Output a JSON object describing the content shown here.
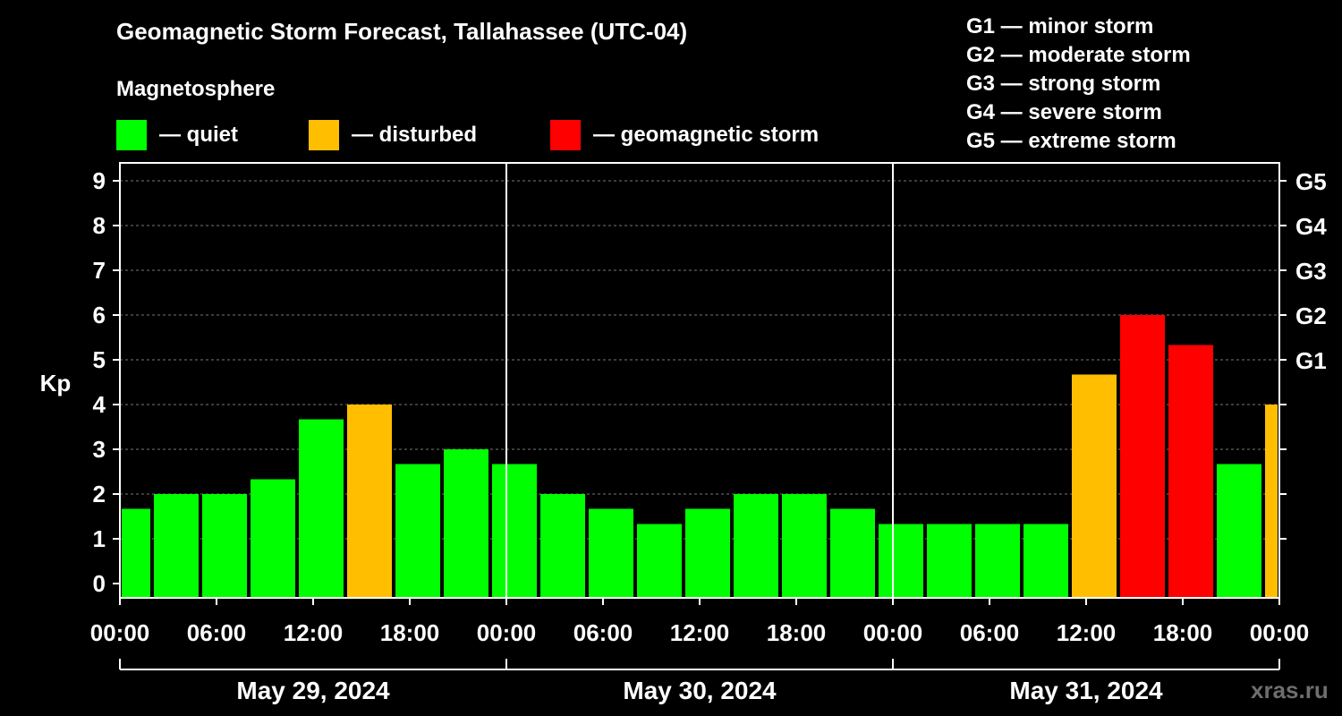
{
  "chart_data": {
    "type": "bar",
    "title": "Geomagnetic Storm Forecast, Tallahassee (UTC-04)",
    "subtitle": "Magnetosphere",
    "ylabel": "Kp",
    "ylim": [
      0,
      9
    ],
    "yticks": [
      "0",
      "1",
      "2",
      "3",
      "4",
      "5",
      "6",
      "7",
      "8",
      "9"
    ],
    "gscale_ticks": [
      {
        "kp": 5,
        "label": "G1"
      },
      {
        "kp": 6,
        "label": "G2"
      },
      {
        "kp": 7,
        "label": "G3"
      },
      {
        "kp": 8,
        "label": "G4"
      },
      {
        "kp": 9,
        "label": "G5"
      }
    ],
    "xticks": [
      "00:00",
      "06:00",
      "12:00",
      "18:00",
      "00:00",
      "06:00",
      "12:00",
      "18:00",
      "00:00",
      "06:00",
      "12:00",
      "18:00",
      "00:00"
    ],
    "hours_total": 72,
    "dates": [
      "May 29, 2024",
      "May 30, 2024",
      "May 31, 2024"
    ],
    "legend": [
      {
        "label": "— quiet",
        "color": "#00ff00"
      },
      {
        "label": "— disturbed",
        "color": "#ffbf00"
      },
      {
        "label": "— geomagnetic storm",
        "color": "#ff0000"
      }
    ],
    "storm_levels": [
      "G1 — minor storm",
      "G2 — moderate storm",
      "G3 — strong storm",
      "G4 — severe storm",
      "G5 — extreme storm"
    ],
    "bars": [
      {
        "start": 0,
        "end": 2,
        "kp": 1.67,
        "level": "quiet"
      },
      {
        "start": 2,
        "end": 5,
        "kp": 2.0,
        "level": "quiet"
      },
      {
        "start": 5,
        "end": 8,
        "kp": 2.0,
        "level": "quiet"
      },
      {
        "start": 8,
        "end": 11,
        "kp": 2.33,
        "level": "quiet"
      },
      {
        "start": 11,
        "end": 14,
        "kp": 3.67,
        "level": "quiet"
      },
      {
        "start": 14,
        "end": 17,
        "kp": 4.0,
        "level": "disturbed"
      },
      {
        "start": 17,
        "end": 20,
        "kp": 2.67,
        "level": "quiet"
      },
      {
        "start": 20,
        "end": 23,
        "kp": 3.0,
        "level": "quiet"
      },
      {
        "start": 23,
        "end": 26,
        "kp": 2.67,
        "level": "quiet"
      },
      {
        "start": 26,
        "end": 29,
        "kp": 2.0,
        "level": "quiet"
      },
      {
        "start": 29,
        "end": 32,
        "kp": 1.67,
        "level": "quiet"
      },
      {
        "start": 32,
        "end": 35,
        "kp": 1.33,
        "level": "quiet"
      },
      {
        "start": 35,
        "end": 38,
        "kp": 1.67,
        "level": "quiet"
      },
      {
        "start": 38,
        "end": 41,
        "kp": 2.0,
        "level": "quiet"
      },
      {
        "start": 41,
        "end": 44,
        "kp": 2.0,
        "level": "quiet"
      },
      {
        "start": 44,
        "end": 47,
        "kp": 1.67,
        "level": "quiet"
      },
      {
        "start": 47,
        "end": 50,
        "kp": 1.33,
        "level": "quiet"
      },
      {
        "start": 50,
        "end": 53,
        "kp": 1.33,
        "level": "quiet"
      },
      {
        "start": 53,
        "end": 56,
        "kp": 1.33,
        "level": "quiet"
      },
      {
        "start": 56,
        "end": 59,
        "kp": 1.33,
        "level": "quiet"
      },
      {
        "start": 59,
        "end": 62,
        "kp": 4.67,
        "level": "disturbed"
      },
      {
        "start": 62,
        "end": 65,
        "kp": 6.0,
        "level": "storm"
      },
      {
        "start": 65,
        "end": 68,
        "kp": 5.33,
        "level": "storm"
      },
      {
        "start": 68,
        "end": 71,
        "kp": 2.67,
        "level": "quiet"
      },
      {
        "start": 71,
        "end": 72,
        "kp": 4.0,
        "level": "disturbed"
      }
    ],
    "level_colors": {
      "quiet": "#00ff00",
      "disturbed": "#ffbf00",
      "storm": "#ff0000"
    },
    "grid": true
  },
  "watermark": "xras.ru"
}
